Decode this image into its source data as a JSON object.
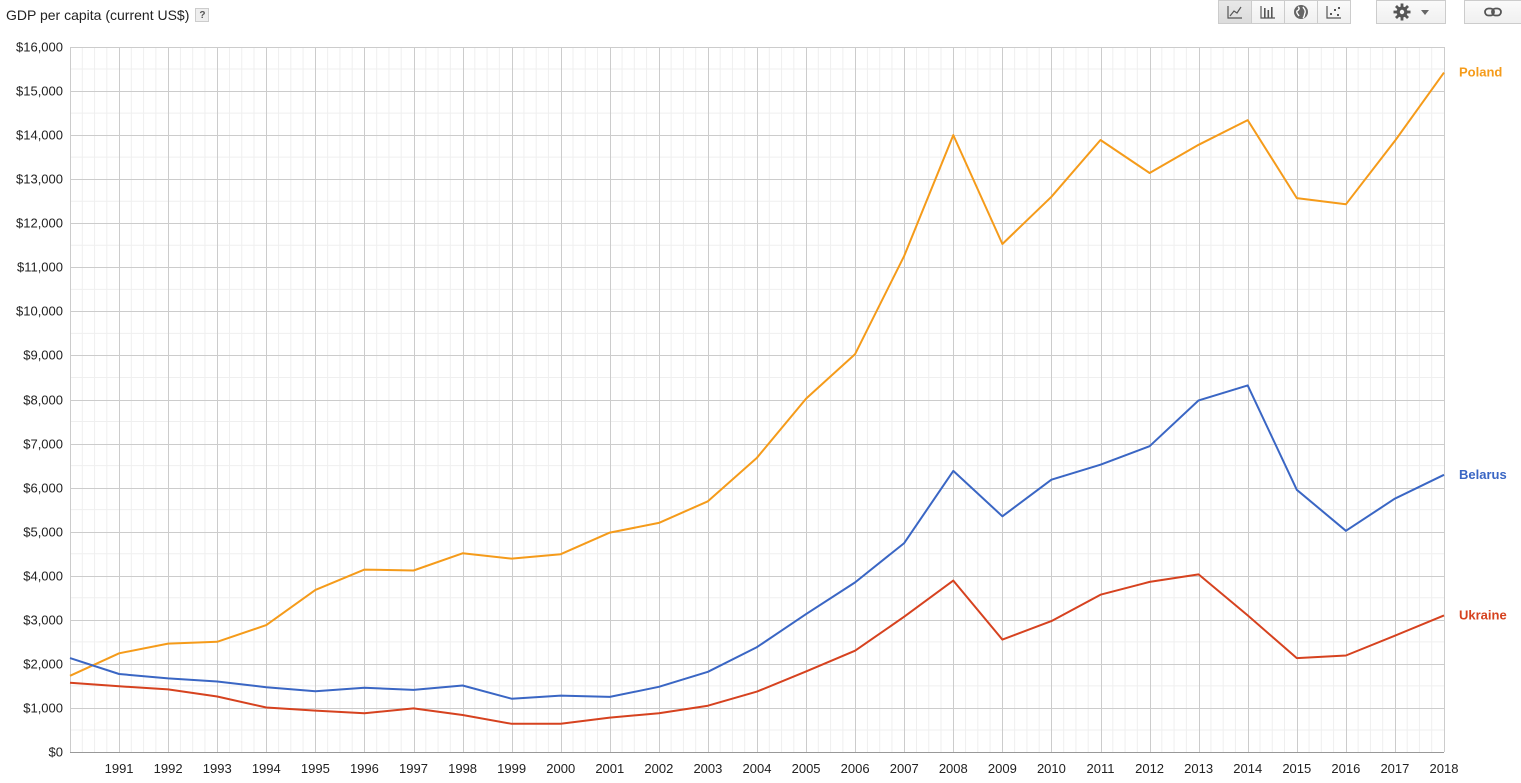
{
  "header": {
    "title": "GDP per capita (current US$)",
    "help_label": "?"
  },
  "toolbar": {
    "buttons": [
      {
        "icon": "line-chart-icon",
        "active": true
      },
      {
        "icon": "bar-chart-icon",
        "active": false
      },
      {
        "icon": "globe-map-icon",
        "active": false
      },
      {
        "icon": "scatter-chart-icon",
        "active": false
      }
    ],
    "settings_icon": "gear-icon",
    "dropdown_icon": "caret-down-icon",
    "link_icon": "link-icon"
  },
  "chart_data": {
    "type": "line",
    "title": "GDP per capita (current US$)",
    "xlabel": "",
    "ylabel": "",
    "grid": true,
    "x": [
      1990,
      1991,
      1992,
      1993,
      1994,
      1995,
      1996,
      1997,
      1998,
      1999,
      2000,
      2001,
      2002,
      2003,
      2004,
      2005,
      2006,
      2007,
      2008,
      2009,
      2010,
      2011,
      2012,
      2013,
      2014,
      2015,
      2016,
      2017,
      2018
    ],
    "x_tick_labels": [
      "1991",
      "1992",
      "1993",
      "1994",
      "1995",
      "1996",
      "1997",
      "1998",
      "1999",
      "2000",
      "2001",
      "2002",
      "2003",
      "2004",
      "2005",
      "2006",
      "2007",
      "2008",
      "2009",
      "2010",
      "2011",
      "2012",
      "2013",
      "2014",
      "2015",
      "2016",
      "2017",
      "2018"
    ],
    "xlim": [
      1990,
      2018
    ],
    "ylim": [
      0,
      16000
    ],
    "y_ticks": [
      0,
      1000,
      2000,
      3000,
      4000,
      5000,
      6000,
      7000,
      8000,
      9000,
      10000,
      11000,
      12000,
      13000,
      14000,
      15000,
      16000
    ],
    "y_tick_labels": [
      "$0",
      "$1,000",
      "$2,000",
      "$3,000",
      "$4,000",
      "$5,000",
      "$6,000",
      "$7,000",
      "$8,000",
      "$9,000",
      "$10,000",
      "$11,000",
      "$12,000",
      "$13,000",
      "$14,000",
      "$15,000",
      "$16,000"
    ],
    "series": [
      {
        "name": "Poland",
        "color": "#f59b1a",
        "values": [
          1730,
          2240,
          2460,
          2500,
          2880,
          3680,
          4140,
          4120,
          4510,
          4390,
          4490,
          4980,
          5200,
          5690,
          6680,
          8020,
          9030,
          11260,
          14000,
          11530,
          12600,
          13890,
          13140,
          13780,
          14340,
          12570,
          12430,
          13870,
          15420
        ]
      },
      {
        "name": "Belarus",
        "color": "#3a66c4",
        "values": [
          2130,
          1770,
          1670,
          1600,
          1470,
          1380,
          1460,
          1410,
          1510,
          1210,
          1280,
          1250,
          1480,
          1820,
          2380,
          3130,
          3850,
          4740,
          6380,
          5350,
          6180,
          6520,
          6940,
          7980,
          8320,
          5950,
          5020,
          5750,
          6290
        ]
      },
      {
        "name": "Ukraine",
        "color": "#d6421f",
        "values": [
          1570,
          1490,
          1420,
          1260,
          1010,
          940,
          880,
          990,
          840,
          640,
          640,
          780,
          880,
          1050,
          1370,
          1830,
          2300,
          3070,
          3890,
          2550,
          2970,
          3570,
          3860,
          4030,
          3100,
          2130,
          2190,
          2640,
          3100
        ]
      }
    ]
  }
}
